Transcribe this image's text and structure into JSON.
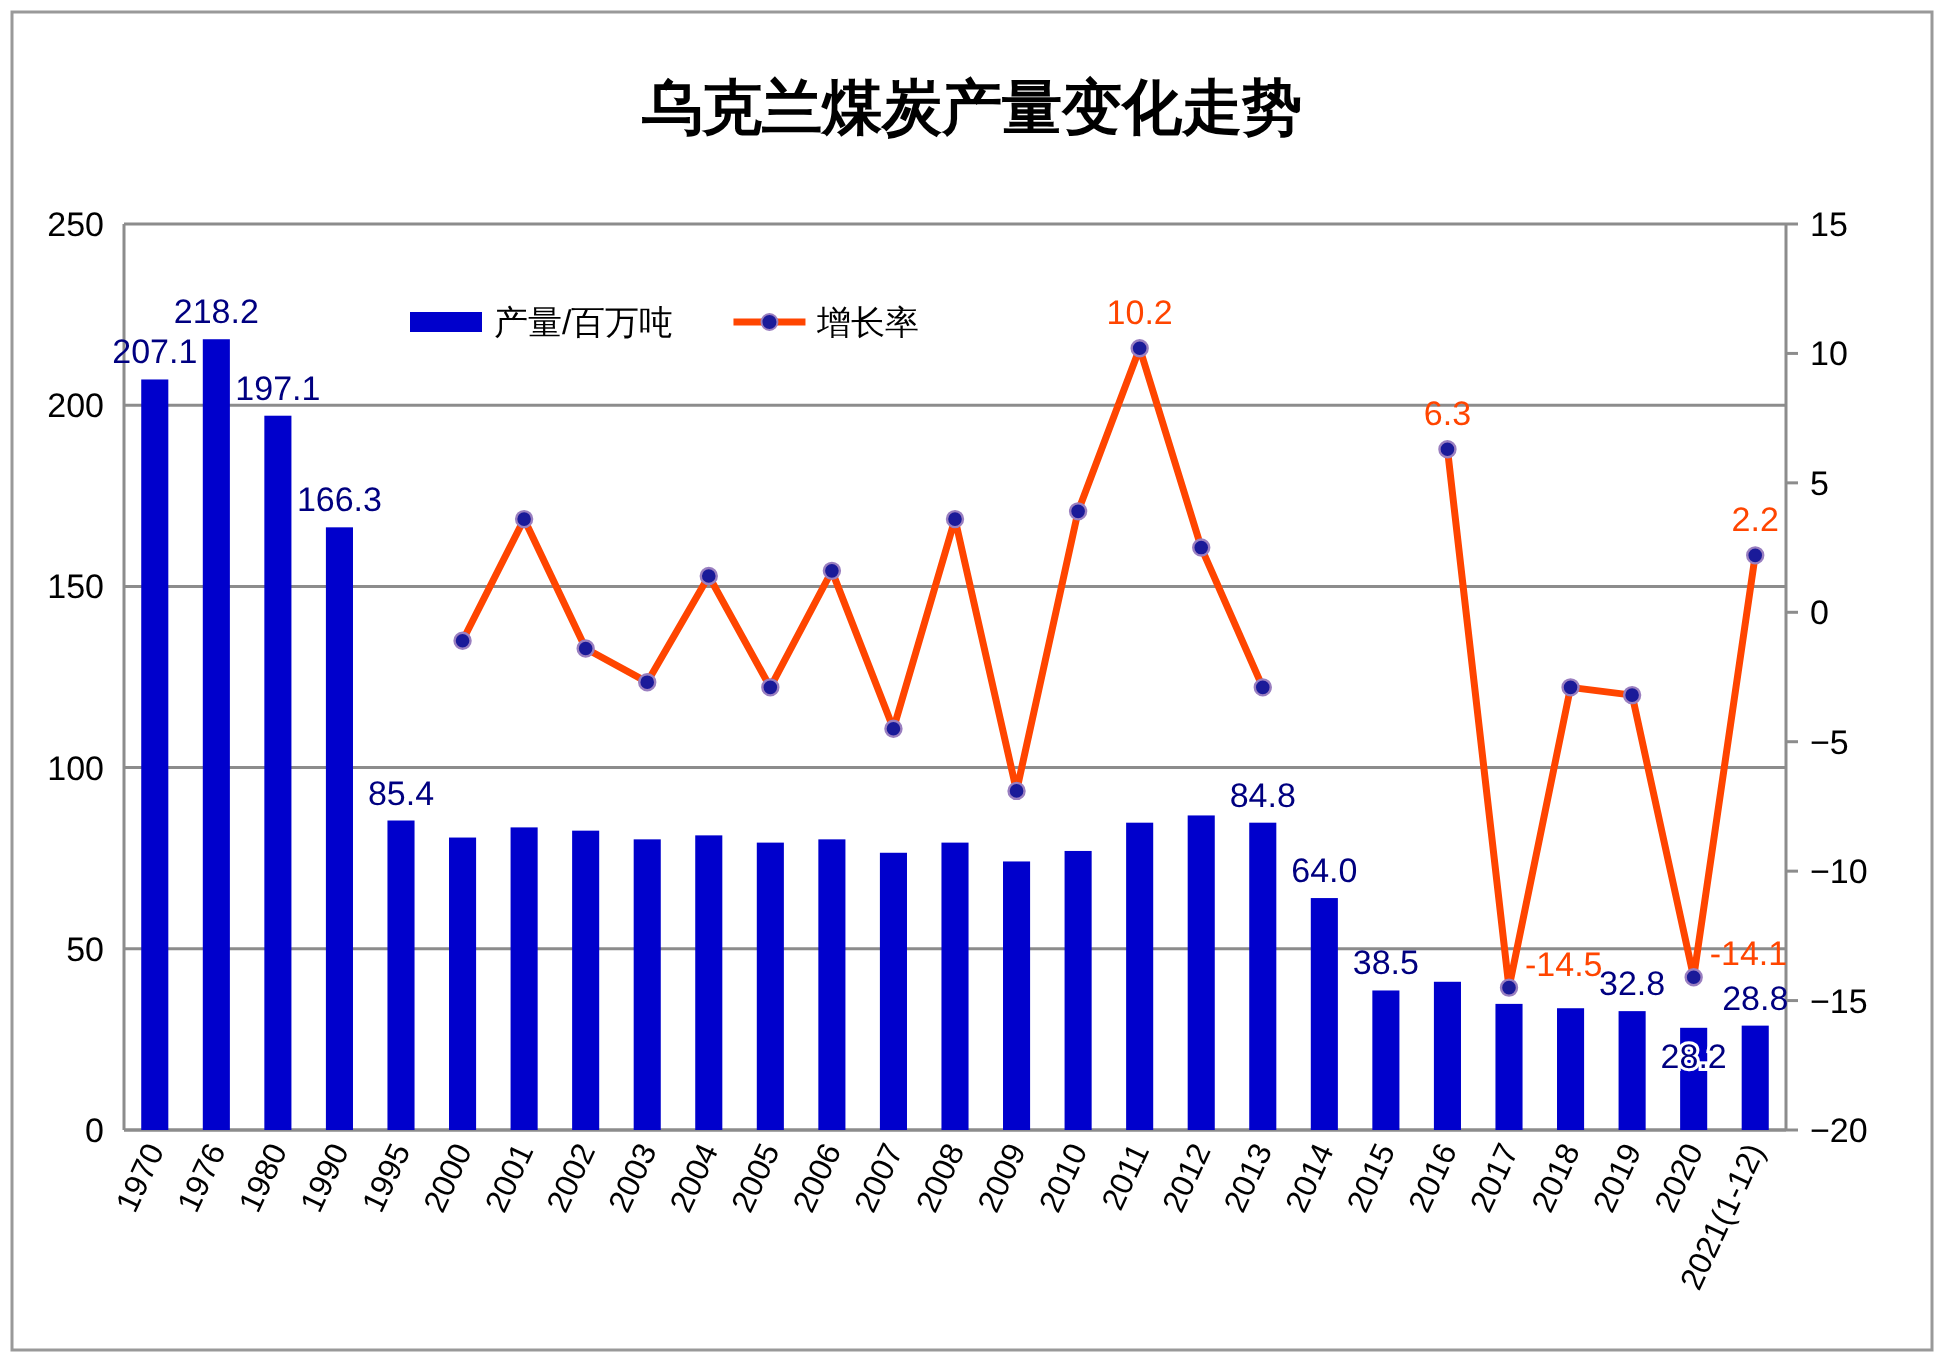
{
  "chart_data": {
    "type": "bar",
    "title": "乌克兰煤炭产量变化走势",
    "categories": [
      "1970",
      "1976",
      "1980",
      "1990",
      "1995",
      "2000",
      "2001",
      "2002",
      "2003",
      "2004",
      "2005",
      "2006",
      "2007",
      "2008",
      "2009",
      "2010",
      "2011",
      "2012",
      "2013",
      "2014",
      "2015",
      "2016",
      "2017",
      "2018",
      "2019",
      "2020",
      "2021(1-12)"
    ],
    "series": [
      {
        "name": "产量/百万吨",
        "color": "#0000cc",
        "values": [
          207.1,
          218.2,
          197.1,
          166.3,
          85.4,
          80.7,
          83.5,
          82.6,
          80.2,
          81.3,
          79.3,
          80.2,
          76.5,
          79.3,
          74.1,
          77.0,
          84.8,
          86.8,
          84.8,
          64.0,
          38.5,
          40.9,
          34.8,
          33.6,
          32.8,
          28.2,
          28.8
        ],
        "value_labels": [
          "207.1",
          "218.2",
          "197.1",
          "166.3",
          "85.4",
          null,
          null,
          null,
          null,
          null,
          null,
          null,
          null,
          null,
          null,
          null,
          null,
          null,
          "84.8",
          "64.0",
          "38.5",
          null,
          null,
          null,
          "32.8",
          "28.2",
          "28.8"
        ]
      },
      {
        "name": "增长率",
        "type": "line",
        "axis": "y2",
        "color": "#ff4500",
        "marker": "circle",
        "values": [
          null,
          null,
          null,
          null,
          null,
          -1.1,
          3.6,
          -1.4,
          -2.7,
          1.4,
          -2.9,
          1.6,
          -4.5,
          3.6,
          -6.9,
          3.9,
          10.2,
          2.5,
          -2.9,
          null,
          null,
          6.3,
          -14.5,
          -2.9,
          -3.2,
          -14.1,
          2.2
        ],
        "value_labels": [
          null,
          null,
          null,
          null,
          null,
          null,
          null,
          null,
          null,
          null,
          null,
          null,
          null,
          null,
          null,
          null,
          "10.2",
          null,
          null,
          null,
          null,
          "6.3",
          "-14.5",
          null,
          null,
          "-14.1",
          "2.2"
        ]
      }
    ],
    "ylim": [
      0,
      250
    ],
    "yticks": [
      0,
      50,
      100,
      150,
      200,
      250
    ],
    "y2lim": [
      -20,
      15
    ],
    "y2ticks": [
      -20,
      -15,
      -10,
      -5,
      0,
      5,
      10,
      15
    ],
    "grid": "y",
    "legend": "top"
  }
}
